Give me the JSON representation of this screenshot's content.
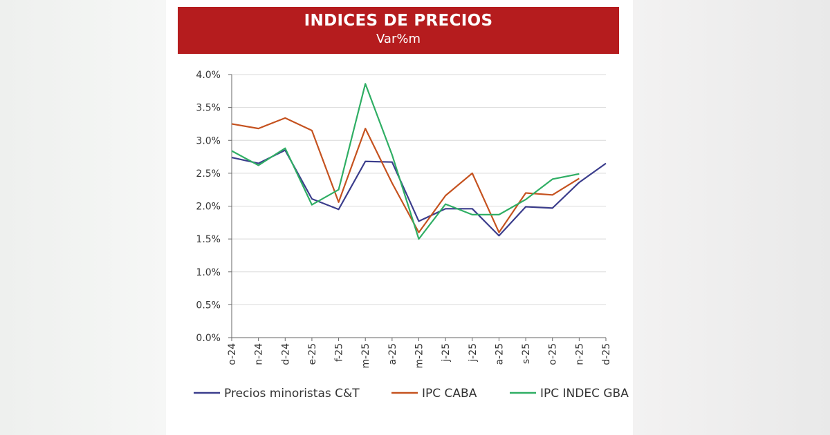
{
  "chart_data": {
    "type": "line",
    "title": "INDICES DE PRECIOS",
    "subtitle": "Var%m",
    "categories": [
      "o-24",
      "n-24",
      "d-24",
      "e-25",
      "f-25",
      "m-25",
      "a-25",
      "m-25",
      "j-25",
      "j-25",
      "a-25",
      "s-25",
      "o-25",
      "n-25",
      "d-25"
    ],
    "ylim": [
      0,
      4.0
    ],
    "yticks": [
      "0.0%",
      "0.5%",
      "1.0%",
      "1.5%",
      "2.0%",
      "2.5%",
      "3.0%",
      "3.5%",
      "4.0%"
    ],
    "grid": true,
    "legend": "bottom",
    "series": [
      {
        "name": "Precios minoristas C&T",
        "color": "#3b3d8c",
        "values": [
          2.74,
          2.65,
          2.85,
          2.11,
          1.95,
          2.68,
          2.67,
          1.77,
          1.96,
          1.96,
          1.55,
          1.99,
          1.97,
          2.36,
          2.65
        ]
      },
      {
        "name": "IPC CABA",
        "color": "#c5521f",
        "values": [
          3.25,
          3.18,
          3.34,
          3.15,
          2.06,
          3.18,
          2.35,
          1.6,
          2.16,
          2.5,
          1.6,
          2.2,
          2.17,
          2.42,
          null
        ]
      },
      {
        "name": "IPC INDEC GBA",
        "color": "#2fae64",
        "values": [
          2.84,
          2.62,
          2.88,
          2.02,
          2.25,
          3.86,
          2.78,
          1.5,
          2.03,
          1.87,
          1.87,
          2.1,
          2.41,
          2.49,
          null
        ]
      }
    ]
  }
}
